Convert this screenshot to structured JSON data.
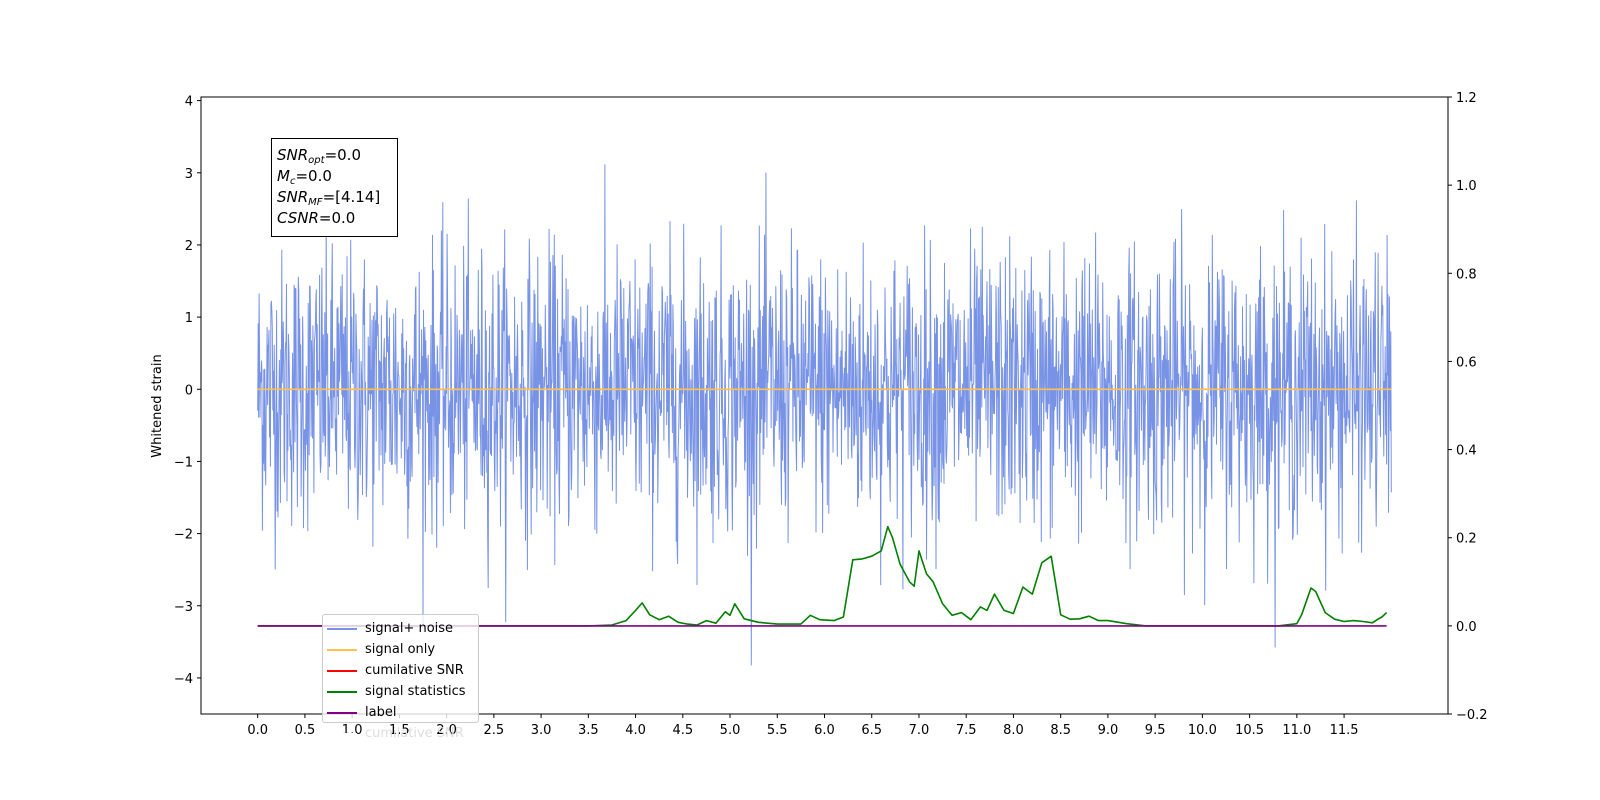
{
  "chart_data": {
    "type": "line",
    "ylabel": "Whitened strain",
    "x_ticks": [
      0.0,
      0.5,
      1.0,
      1.5,
      2.0,
      2.5,
      3.0,
      3.5,
      4.0,
      4.5,
      5.0,
      5.5,
      6.0,
      6.5,
      7.0,
      7.5,
      8.0,
      8.5,
      9.0,
      9.5,
      10.0,
      10.5,
      11.0,
      11.5
    ],
    "x_tick_labels": [
      "0.0",
      "0.5",
      "1.0",
      "1.5",
      "2.0",
      "2.5",
      "3.0",
      "3.5",
      "4.0",
      "4.5",
      "5.0",
      "5.5",
      "6.0",
      "6.5",
      "7.0",
      "7.5",
      "8.0",
      "8.5",
      "9.0",
      "9.5",
      "10.0",
      "10.5",
      "11.0",
      "11.5"
    ],
    "xlim": [
      -0.6,
      12.6
    ],
    "ylim_left": [
      -4.5,
      4.05
    ],
    "ylim_right": [
      -0.2,
      1.2
    ],
    "y_left_ticks": [
      -4,
      -3,
      -2,
      -1,
      0,
      1,
      2,
      3,
      4
    ],
    "y_left_tick_labels": [
      "−4",
      "−3",
      "−2",
      "−1",
      "0",
      "1",
      "2",
      "3",
      "4"
    ],
    "y_right_ticks": [
      -0.2,
      0.0,
      0.2,
      0.4,
      0.6,
      0.8,
      1.0,
      1.2
    ],
    "y_right_tick_labels": [
      "−0.2",
      "0.0",
      "0.2",
      "0.4",
      "0.6",
      "0.8",
      "1.0",
      "1.2"
    ],
    "grid": false,
    "legend_position": "lower-left",
    "annotation": {
      "snr_opt": {
        "sym": "SNR",
        "sub": "opt",
        "val": "=0.0"
      },
      "mc": {
        "sym": "M",
        "sub": "c",
        "val": "=0.0"
      },
      "snr_mf": {
        "sym": "SNR",
        "sub": "MF",
        "val": "=[4.14]"
      },
      "csnr": {
        "sym": "CSNR",
        "sub": "",
        "val": "=0.0"
      }
    },
    "series": [
      {
        "name": "signal+ noise",
        "color": "#7893e6",
        "axis": "left",
        "kind": "gaussian_noise",
        "x_range": [
          0.0,
          12.0
        ],
        "std": 0.95,
        "peak_max": 3.67,
        "peak_min": -4.1
      },
      {
        "name": "signal only",
        "color": "#ffc04d",
        "axis": "left",
        "x": [
          0.0,
          12.0
        ],
        "y": [
          0.0,
          0.0
        ]
      },
      {
        "name": "cumilative SNR",
        "color": "#ff0000",
        "axis": "left",
        "x": [],
        "y": []
      },
      {
        "name": "signal statistics",
        "color": "#008000",
        "axis": "right",
        "x": [
          0.0,
          0.5,
          1.0,
          1.5,
          2.0,
          2.5,
          3.0,
          3.5,
          3.75,
          3.9,
          4.0,
          4.07,
          4.15,
          4.25,
          4.35,
          4.45,
          4.55,
          4.65,
          4.75,
          4.85,
          4.95,
          5.0,
          5.05,
          5.15,
          5.3,
          5.5,
          5.75,
          5.85,
          5.95,
          6.1,
          6.2,
          6.3,
          6.4,
          6.5,
          6.6,
          6.67,
          6.72,
          6.8,
          6.9,
          6.95,
          7.0,
          7.08,
          7.15,
          7.25,
          7.35,
          7.45,
          7.55,
          7.65,
          7.72,
          7.8,
          7.9,
          8.0,
          8.1,
          8.2,
          8.3,
          8.4,
          8.5,
          8.6,
          8.7,
          8.8,
          8.9,
          9.0,
          9.2,
          9.4,
          9.6,
          10.0,
          10.5,
          10.8,
          11.0,
          11.05,
          11.15,
          11.2,
          11.3,
          11.4,
          11.5,
          11.6,
          11.7,
          11.8,
          11.85,
          11.9,
          11.95
        ],
        "y": [
          0.0,
          0.0,
          0.0,
          0.0,
          0.0,
          0.0,
          0.0,
          0.0,
          0.002,
          0.012,
          0.035,
          0.052,
          0.025,
          0.014,
          0.022,
          0.008,
          0.004,
          0.002,
          0.012,
          0.006,
          0.032,
          0.024,
          0.05,
          0.016,
          0.008,
          0.004,
          0.004,
          0.024,
          0.014,
          0.012,
          0.02,
          0.15,
          0.152,
          0.158,
          0.17,
          0.225,
          0.2,
          0.14,
          0.1,
          0.09,
          0.17,
          0.118,
          0.1,
          0.05,
          0.024,
          0.03,
          0.014,
          0.043,
          0.035,
          0.072,
          0.035,
          0.028,
          0.088,
          0.072,
          0.143,
          0.158,
          0.025,
          0.015,
          0.016,
          0.022,
          0.012,
          0.012,
          0.005,
          0.0,
          0.0,
          0.0,
          0.0,
          0.0,
          0.005,
          0.025,
          0.086,
          0.078,
          0.03,
          0.015,
          0.01,
          0.012,
          0.01,
          0.007,
          0.014,
          0.02,
          0.03
        ]
      },
      {
        "name": "label",
        "color": "#800080",
        "axis": "right",
        "x": [
          0.0,
          11.95
        ],
        "y": [
          0.0,
          0.0
        ]
      },
      {
        "name": "cumilative SNR",
        "color": "#ffffff",
        "axis": "right",
        "x": [],
        "y": []
      }
    ]
  }
}
